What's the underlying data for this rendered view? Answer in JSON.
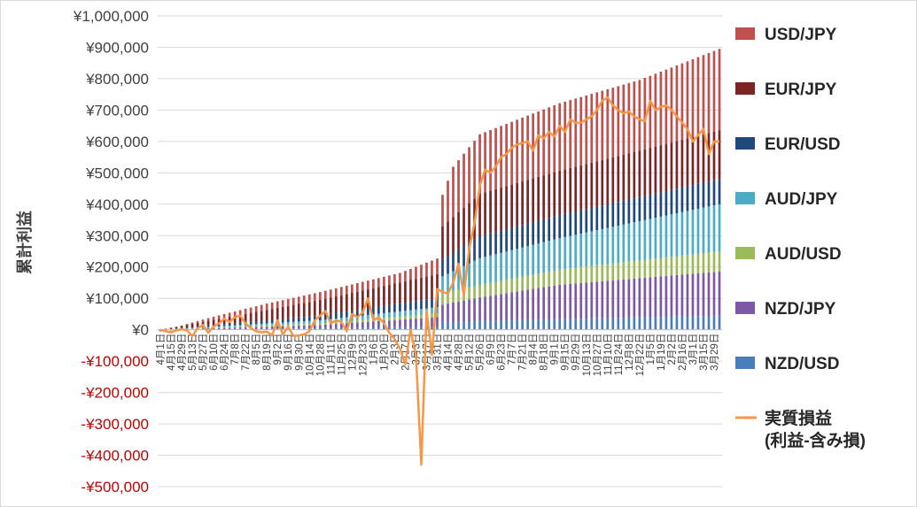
{
  "chart_data": {
    "type": "bar",
    "stacked": true,
    "ylabel": "累計利益",
    "ylim": [
      -500000,
      1000000
    ],
    "yticks": [
      {
        "value": 1000000,
        "label": "¥1,000,000"
      },
      {
        "value": 900000,
        "label": "¥900,000"
      },
      {
        "value": 800000,
        "label": "¥800,000"
      },
      {
        "value": 700000,
        "label": "¥700,000"
      },
      {
        "value": 600000,
        "label": "¥600,000"
      },
      {
        "value": 500000,
        "label": "¥500,000"
      },
      {
        "value": 400000,
        "label": "¥400,000"
      },
      {
        "value": 300000,
        "label": "¥300,000"
      },
      {
        "value": 200000,
        "label": "¥200,000"
      },
      {
        "value": 100000,
        "label": "¥100,000"
      },
      {
        "value": 0,
        "label": "¥0"
      },
      {
        "value": -100000,
        "label": "-¥100,000"
      },
      {
        "value": -200000,
        "label": "-¥200,000"
      },
      {
        "value": -300000,
        "label": "-¥300,000"
      },
      {
        "value": -400000,
        "label": "-¥400,000"
      },
      {
        "value": -500000,
        "label": "-¥500,000"
      }
    ],
    "negative_tick_color": "#c00000",
    "positive_tick_color": "#404040",
    "grid": true,
    "legend_position": "right",
    "n_points": 106,
    "x_tick_labels": [
      "4月1日",
      "4月15日",
      "4月29日",
      "5月13日",
      "5月27日",
      "6月10日",
      "6月24日",
      "7月8日",
      "7月22日",
      "8月5日",
      "8月19日",
      "9月2日",
      "9月16日",
      "9月30日",
      "10月14日",
      "10月28日",
      "11月11日",
      "11月25日",
      "12月9日",
      "12月23日",
      "1月6日",
      "1月20日",
      "2月3日",
      "2月17日",
      "3月3日",
      "3月17日",
      "3月31日",
      "4月14日",
      "4月28日",
      "5月12日",
      "5月26日",
      "6月9日",
      "6月23日",
      "7月7日",
      "7月21日",
      "8月4日",
      "8月18日",
      "9月1日",
      "9月15日",
      "9月29日",
      "10月13日",
      "10月27日",
      "11月10日",
      "11月24日",
      "12月8日",
      "12月22日",
      "1月5日",
      "1月19日",
      "2月2日",
      "2月16日",
      "3月1日",
      "3月15日",
      "3月29日"
    ],
    "series_keyframes_note_x": "x is the week index (0 = 4月1日, one point per week, 106 points)",
    "series": [
      {
        "name": "NZD/USD",
        "color": "#4a7ebb",
        "keyframes": [
          [
            0,
            0
          ],
          [
            30,
            5000
          ],
          [
            52,
            10000
          ],
          [
            53,
            25000
          ],
          [
            60,
            28000
          ],
          [
            105,
            45000
          ]
        ]
      },
      {
        "name": "NZD/JPY",
        "color": "#7e57a6",
        "keyframes": [
          [
            0,
            0
          ],
          [
            30,
            10000
          ],
          [
            52,
            30000
          ],
          [
            53,
            55000
          ],
          [
            60,
            75000
          ],
          [
            75,
            110000
          ],
          [
            105,
            140000
          ]
        ]
      },
      {
        "name": "AUD/USD",
        "color": "#9bbb59",
        "keyframes": [
          [
            0,
            0
          ],
          [
            30,
            5000
          ],
          [
            52,
            12000
          ],
          [
            53,
            35000
          ],
          [
            60,
            40000
          ],
          [
            105,
            65000
          ]
        ]
      },
      {
        "name": "AUD/JPY",
        "color": "#4bacc6",
        "keyframes": [
          [
            0,
            0
          ],
          [
            30,
            10000
          ],
          [
            52,
            20000
          ],
          [
            53,
            55000
          ],
          [
            60,
            85000
          ],
          [
            75,
            100000
          ],
          [
            105,
            150000
          ]
        ]
      },
      {
        "name": "EUR/USD",
        "color": "#1f497d",
        "keyframes": [
          [
            0,
            0
          ],
          [
            30,
            15000
          ],
          [
            52,
            30000
          ],
          [
            53,
            55000
          ],
          [
            60,
            70000
          ],
          [
            105,
            80000
          ]
        ]
      },
      {
        "name": "EUR/JPY",
        "color": "#7b2525",
        "keyframes": [
          [
            0,
            0
          ],
          [
            30,
            50000
          ],
          [
            52,
            75000
          ],
          [
            53,
            105000
          ],
          [
            60,
            135000
          ],
          [
            105,
            155000
          ]
        ]
      },
      {
        "name": "USD/JPY",
        "color": "#c0504d",
        "keyframes": [
          [
            0,
            -5000
          ],
          [
            10,
            10000
          ],
          [
            20,
            20000
          ],
          [
            30,
            25000
          ],
          [
            45,
            30000
          ],
          [
            52,
            50000
          ],
          [
            53,
            100000
          ],
          [
            55,
            160000
          ],
          [
            60,
            190000
          ],
          [
            75,
            215000
          ],
          [
            90,
            225000
          ],
          [
            105,
            260000
          ]
        ]
      }
    ],
    "line": {
      "name": "実質損益\n(利益-含み損)",
      "legend_lines": [
        "実質損益",
        "(利益-含み損)"
      ],
      "color": "#f79646",
      "values": [
        0,
        -5000,
        -8000,
        -3000,
        2000,
        -2000,
        -20000,
        5000,
        15000,
        -10000,
        10000,
        20000,
        35000,
        25000,
        40000,
        45000,
        20000,
        5000,
        -5000,
        -8000,
        -6000,
        -18000,
        30000,
        -15000,
        10000,
        -20000,
        -18000,
        -15000,
        -5000,
        30000,
        45000,
        60000,
        20000,
        30000,
        25000,
        -5000,
        50000,
        40000,
        55000,
        100000,
        30000,
        40000,
        20000,
        -10000,
        -30000,
        -60000,
        -110000,
        0,
        -80000,
        -430000,
        60000,
        -80000,
        130000,
        120000,
        115000,
        150000,
        210000,
        110000,
        260000,
        340000,
        460000,
        510000,
        500000,
        520000,
        550000,
        560000,
        580000,
        590000,
        595000,
        600000,
        570000,
        620000,
        610000,
        630000,
        615000,
        650000,
        630000,
        670000,
        660000,
        660000,
        670000,
        680000,
        700000,
        730000,
        740000,
        715000,
        700000,
        690000,
        695000,
        680000,
        670000,
        665000,
        730000,
        700000,
        710000,
        715000,
        700000,
        680000,
        660000,
        640000,
        600000,
        620000,
        640000,
        560000,
        600000,
        600000
      ]
    },
    "legend": [
      "USD/JPY",
      "EUR/JPY",
      "EUR/USD",
      "AUD/JPY",
      "AUD/USD",
      "NZD/JPY",
      "NZD/USD",
      "実質損益\n(利益-含み損)"
    ]
  }
}
